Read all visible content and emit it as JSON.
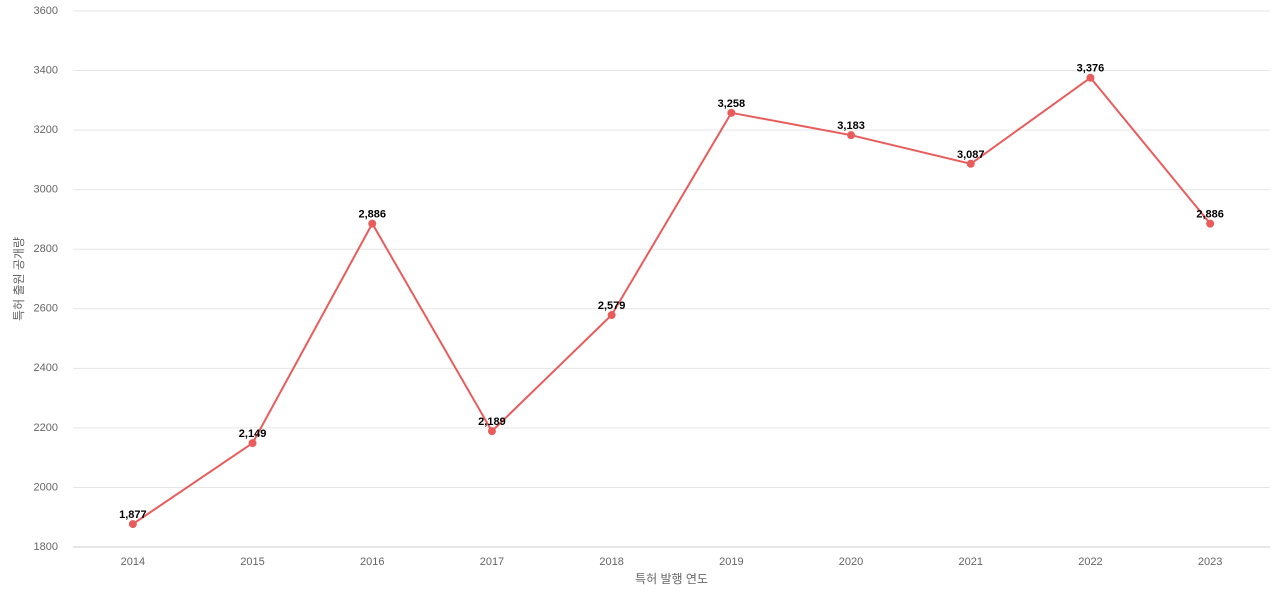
{
  "chart_data": {
    "type": "line",
    "title": "",
    "xlabel": "특허 발행 연도",
    "ylabel": "특허 출원 공개량",
    "categories": [
      "2014",
      "2015",
      "2016",
      "2017",
      "2018",
      "2019",
      "2020",
      "2021",
      "2022",
      "2023"
    ],
    "series": [
      {
        "values": [
          1877,
          2149,
          2886,
          2189,
          2579,
          3258,
          3183,
          3087,
          3376,
          2886
        ],
        "labels": [
          "1,877",
          "2,149",
          "2,886",
          "2,189",
          "2,579",
          "3,258",
          "3,183",
          "3,087",
          "3,376",
          "2,886"
        ],
        "color": "#e85c5c"
      }
    ],
    "ylim": [
      1800,
      3600
    ],
    "yticks": [
      "1800",
      "2000",
      "2200",
      "2400",
      "2600",
      "2800",
      "3000",
      "3200",
      "3400",
      "3600"
    ],
    "grid": true,
    "legend": "none"
  }
}
